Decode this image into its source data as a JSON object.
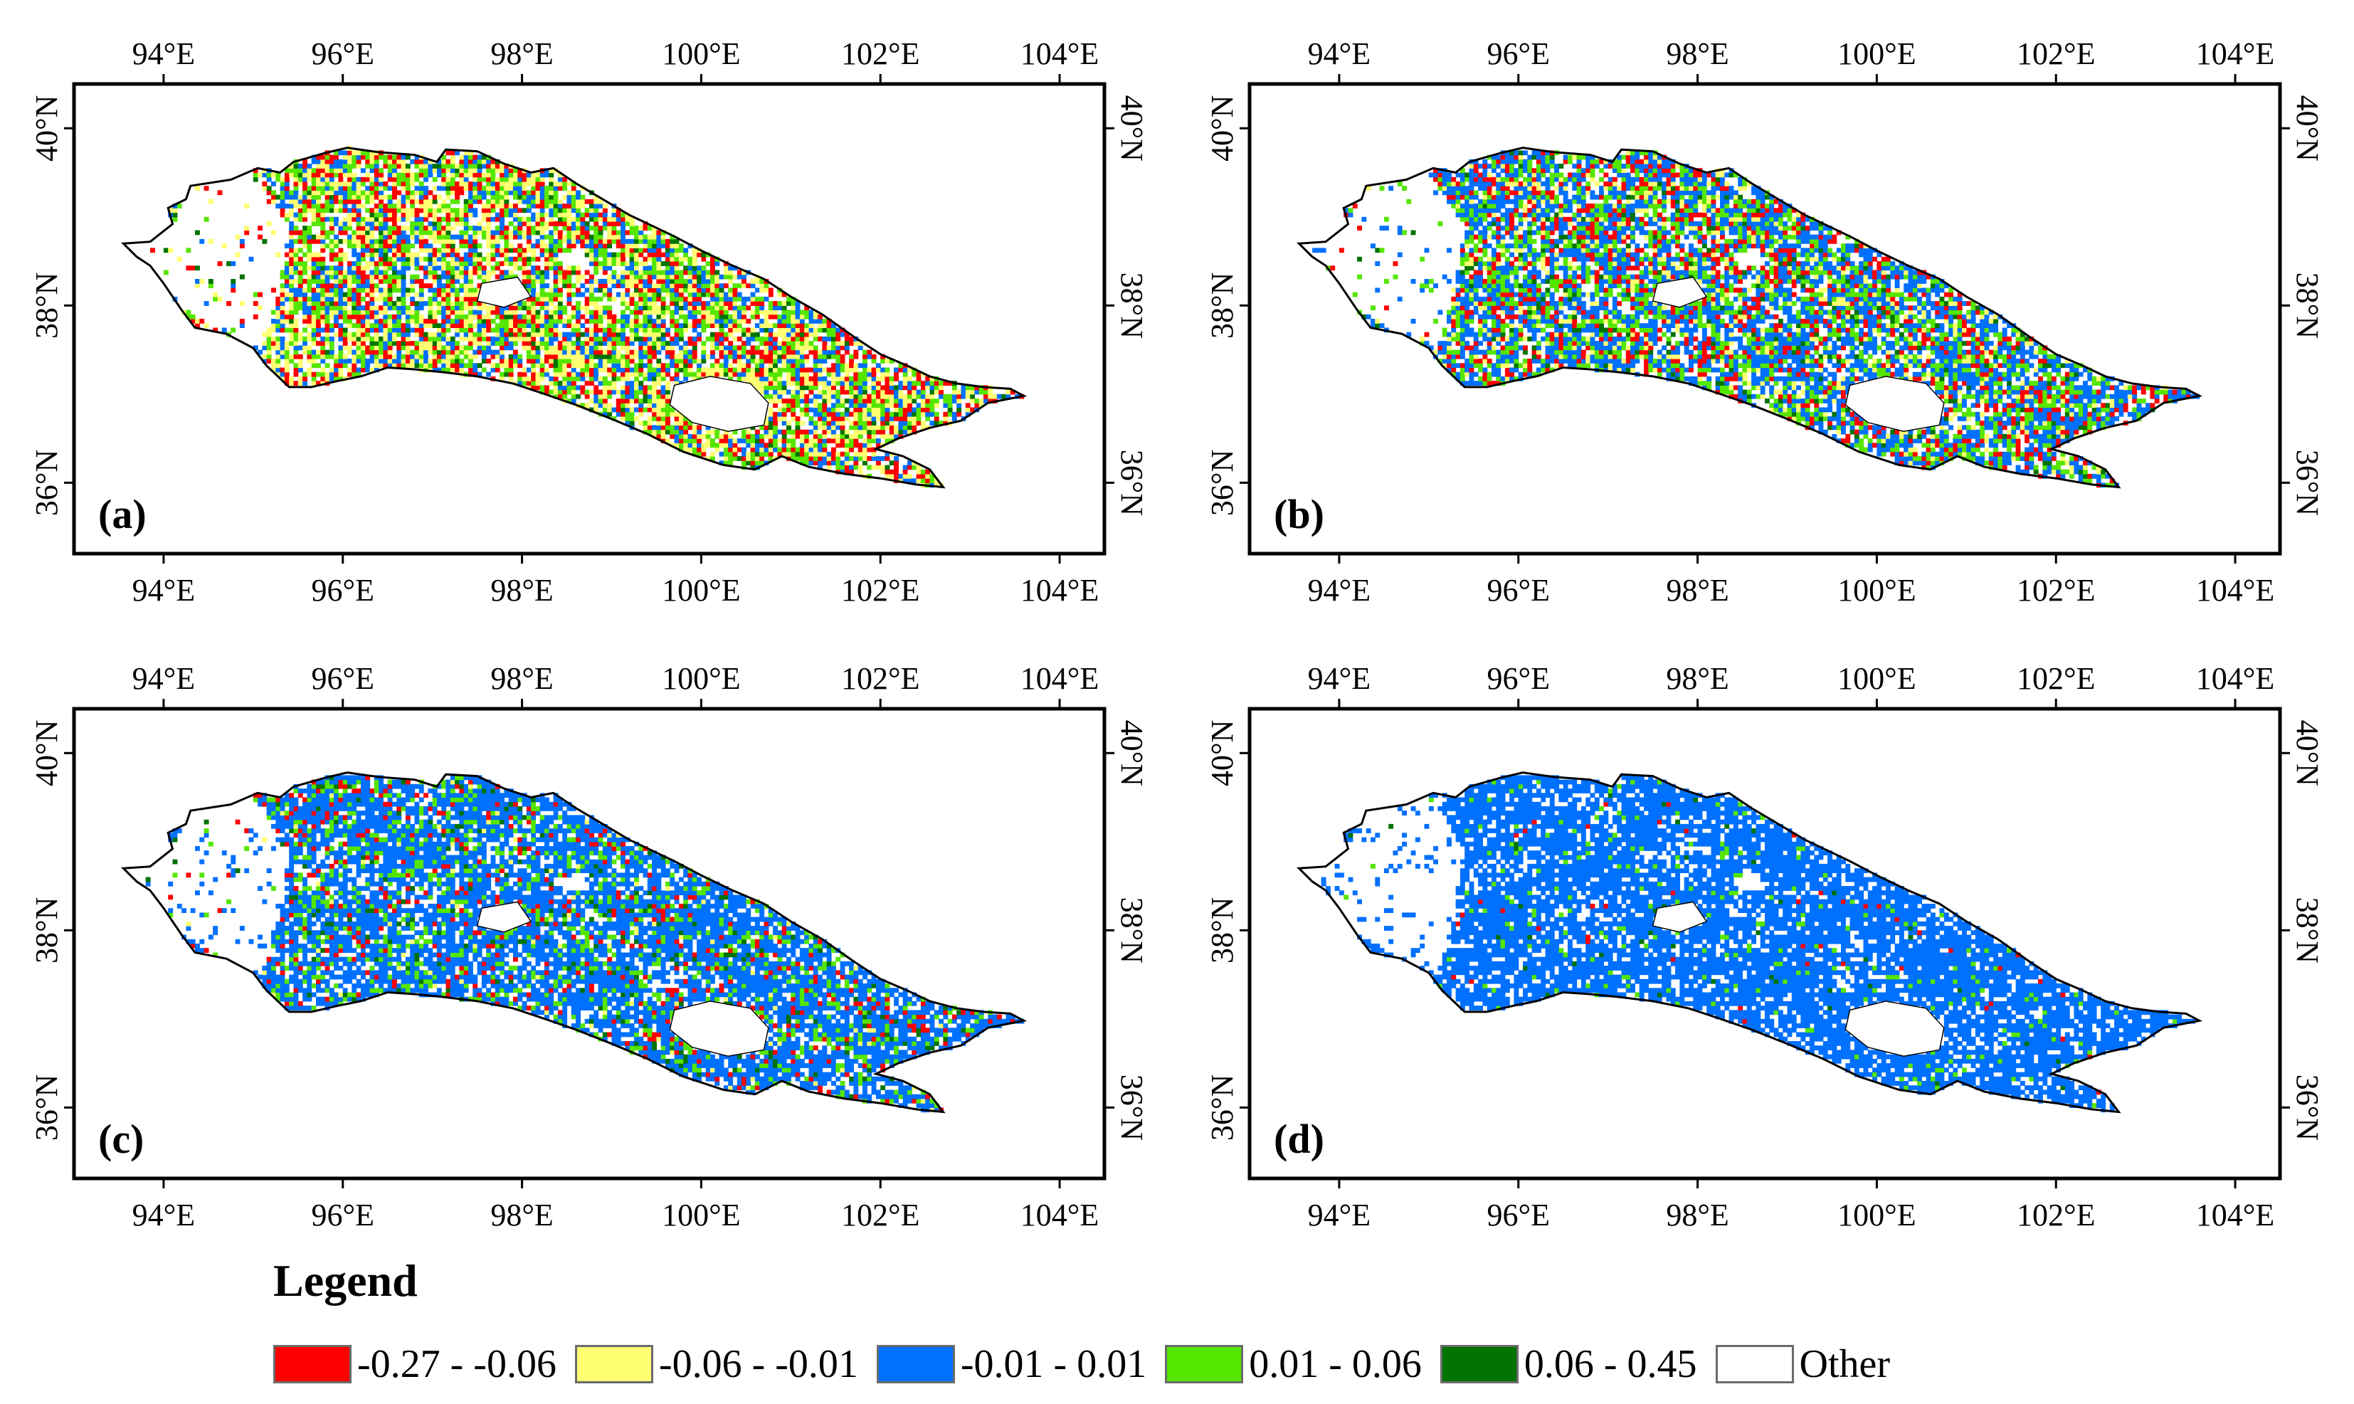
{
  "figure": {
    "panels": [
      {
        "label": "(a)",
        "mix": [
          0.22,
          0.28,
          0.2,
          0.25,
          0.05
        ]
      },
      {
        "label": "(b)",
        "mix": [
          0.18,
          0.1,
          0.44,
          0.24,
          0.04
        ]
      },
      {
        "label": "(c)",
        "mix": [
          0.08,
          0.02,
          0.7,
          0.16,
          0.04
        ]
      },
      {
        "label": "(d)",
        "mix": [
          0.01,
          0.0,
          0.93,
          0.05,
          0.01
        ]
      }
    ],
    "x_ticks": [
      "94°E",
      "96°E",
      "98°E",
      "100°E",
      "102°E",
      "104°E"
    ],
    "y_ticks": [
      "40°N",
      "38°N",
      "36°N"
    ],
    "extent": {
      "lon_min": 93.0,
      "lon_max": 104.5,
      "lat_min": 35.2,
      "lat_max": 40.5
    },
    "x_tick_values": [
      94,
      96,
      98,
      100,
      102,
      104
    ],
    "y_tick_values": [
      40,
      38,
      36
    ]
  },
  "legend": {
    "title": "Legend",
    "items": [
      {
        "label": "-0.27 - -0.06",
        "color": "#ff0000"
      },
      {
        "label": "-0.06 - -0.01",
        "color": "#ffff73"
      },
      {
        "label": "-0.01 - 0.01",
        "color": "#0070ff"
      },
      {
        "label": "0.01 - 0.06",
        "color": "#55e600"
      },
      {
        "label": "0.06 - 0.45",
        "color": "#007300"
      },
      {
        "label": "Other",
        "color": "#ffffff"
      }
    ]
  }
}
